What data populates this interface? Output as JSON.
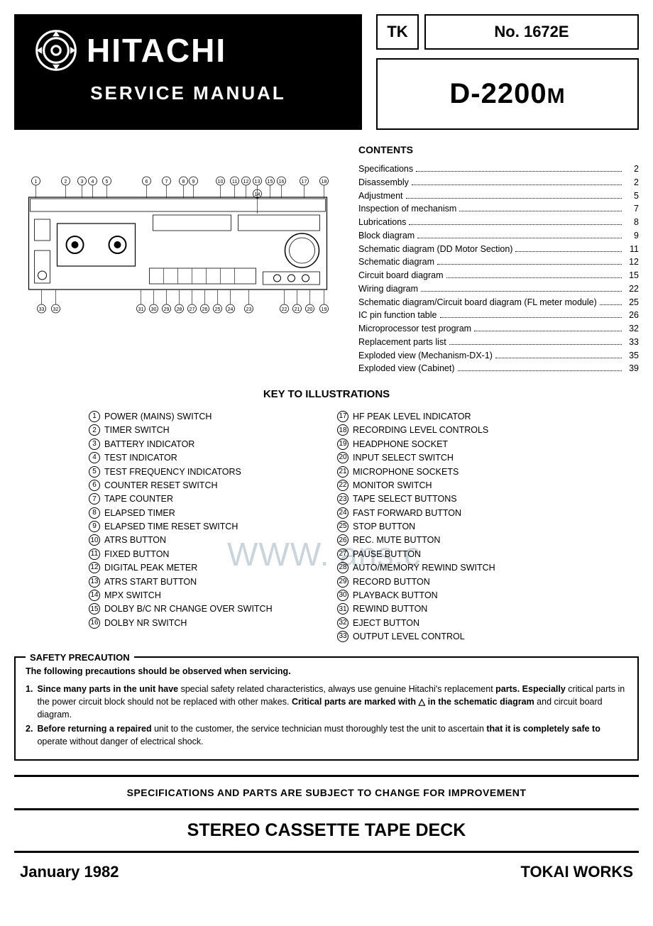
{
  "header": {
    "brand": "HITACHI",
    "subtitle": "SERVICE MANUAL",
    "tk_label": "TK",
    "tk_number": "No. 1672E",
    "model": "D-2200",
    "model_suffix": "M"
  },
  "contents": {
    "title": "CONTENTS",
    "items": [
      {
        "label": "Specifications",
        "page": "2"
      },
      {
        "label": "Disassembly",
        "page": "2"
      },
      {
        "label": "Adjustment",
        "page": "5"
      },
      {
        "label": "Inspection of mechanism",
        "page": "7"
      },
      {
        "label": "Lubrications",
        "page": "8"
      },
      {
        "label": "Block diagram",
        "page": "9"
      },
      {
        "label": "Schematic diagram (DD Motor Section)",
        "page": "11"
      },
      {
        "label": "Schematic diagram",
        "page": "12"
      },
      {
        "label": "Circuit board diagram",
        "page": "15"
      },
      {
        "label": "Wiring diagram",
        "page": "22"
      },
      {
        "label": "Schematic diagram/Circuit board diagram (FL meter module)",
        "page": "25"
      },
      {
        "label": "IC pin function table",
        "page": "26"
      },
      {
        "label": "Microprocessor test program",
        "page": "32"
      },
      {
        "label": "Replacement parts list",
        "page": "33"
      },
      {
        "label": "Exploded view (Mechanism-DX-1)",
        "page": "35"
      },
      {
        "label": "Exploded view (Cabinet)",
        "page": "39"
      }
    ]
  },
  "key": {
    "title": "KEY TO ILLUSTRATIONS",
    "col1": [
      {
        "n": "1",
        "t": "POWER (MAINS) SWITCH"
      },
      {
        "n": "2",
        "t": "TIMER SWITCH"
      },
      {
        "n": "3",
        "t": "BATTERY INDICATOR"
      },
      {
        "n": "4",
        "t": "TEST INDICATOR"
      },
      {
        "n": "5",
        "t": "TEST FREQUENCY INDICATORS"
      },
      {
        "n": "6",
        "t": "COUNTER RESET SWITCH"
      },
      {
        "n": "7",
        "t": "TAPE COUNTER"
      },
      {
        "n": "8",
        "t": "ELAPSED TIMER"
      },
      {
        "n": "9",
        "t": "ELAPSED TIME RESET SWITCH"
      },
      {
        "n": "10",
        "t": "ATRS BUTTON"
      },
      {
        "n": "11",
        "t": "FIXED BUTTON"
      },
      {
        "n": "12",
        "t": "DIGITAL PEAK METER"
      },
      {
        "n": "13",
        "t": "ATRS START BUTTON"
      },
      {
        "n": "14",
        "t": "MPX SWITCH"
      },
      {
        "n": "15",
        "t": "DOLBY B/C NR CHANGE OVER SWITCH"
      },
      {
        "n": "16",
        "t": "DOLBY  NR SWITCH"
      }
    ],
    "col2": [
      {
        "n": "17",
        "t": "HF PEAK LEVEL INDICATOR"
      },
      {
        "n": "18",
        "t": "RECORDING LEVEL CONTROLS"
      },
      {
        "n": "19",
        "t": "HEADPHONE SOCKET"
      },
      {
        "n": "20",
        "t": "INPUT SELECT SWITCH"
      },
      {
        "n": "21",
        "t": "MICROPHONE SOCKETS"
      },
      {
        "n": "22",
        "t": "MONITOR SWITCH"
      },
      {
        "n": "23",
        "t": "TAPE SELECT BUTTONS"
      },
      {
        "n": "24",
        "t": "FAST FORWARD BUTTON"
      },
      {
        "n": "25",
        "t": "STOP BUTTON"
      },
      {
        "n": "26",
        "t": "REC. MUTE BUTTON"
      },
      {
        "n": "27",
        "t": "PAUSE BUTTON"
      },
      {
        "n": "28",
        "t": "AUTO/MEMORY REWIND SWITCH"
      },
      {
        "n": "29",
        "t": "RECORD BUTTON"
      },
      {
        "n": "30",
        "t": "PLAYBACK BUTTON"
      },
      {
        "n": "31",
        "t": "REWIND BUTTON"
      },
      {
        "n": "32",
        "t": "EJECT BUTTON"
      },
      {
        "n": "33",
        "t": "OUTPUT LEVEL CONTROL"
      }
    ]
  },
  "safety": {
    "title": "SAFETY PRECAUTION",
    "intro": "The following precautions should be observed when servicing.",
    "items": [
      "Since many parts in the unit have special safety related characteristics, always use genuine Hitachi's replacement parts. Especially critical parts in the power circuit block should not be replaced with other makes. Critical parts are marked with △ in the schematic diagram and circuit board diagram.",
      "Before returning a repaired unit to the customer, the service technician must thoroughly test the unit to ascertain that it is completely safe to operate without danger of electrical shock."
    ]
  },
  "notice": "SPECIFICATIONS AND PARTS ARE SUBJECT TO CHANGE FOR IMPROVEMENT",
  "product_title": "STEREO CASSETTE TAPE DECK",
  "footer": {
    "date": "January 1982",
    "works": "TOKAI WORKS"
  },
  "watermark": "WWW.          ans.c",
  "illustration": {
    "callouts_top": [
      "1",
      "2",
      "3",
      "4",
      "5",
      "6",
      "7",
      "8",
      "9",
      "10",
      "11",
      "12",
      "13",
      "15",
      "16",
      "17",
      "18"
    ],
    "callouts_inner": [
      "14"
    ],
    "callouts_bottom": [
      "33",
      "32",
      "31",
      "30",
      "29",
      "28",
      "27",
      "26",
      "25",
      "24",
      "23",
      "22",
      "21",
      "20",
      "19"
    ]
  },
  "colors": {
    "black": "#000000",
    "white": "#ffffff",
    "watermark": "#c9d4db"
  }
}
